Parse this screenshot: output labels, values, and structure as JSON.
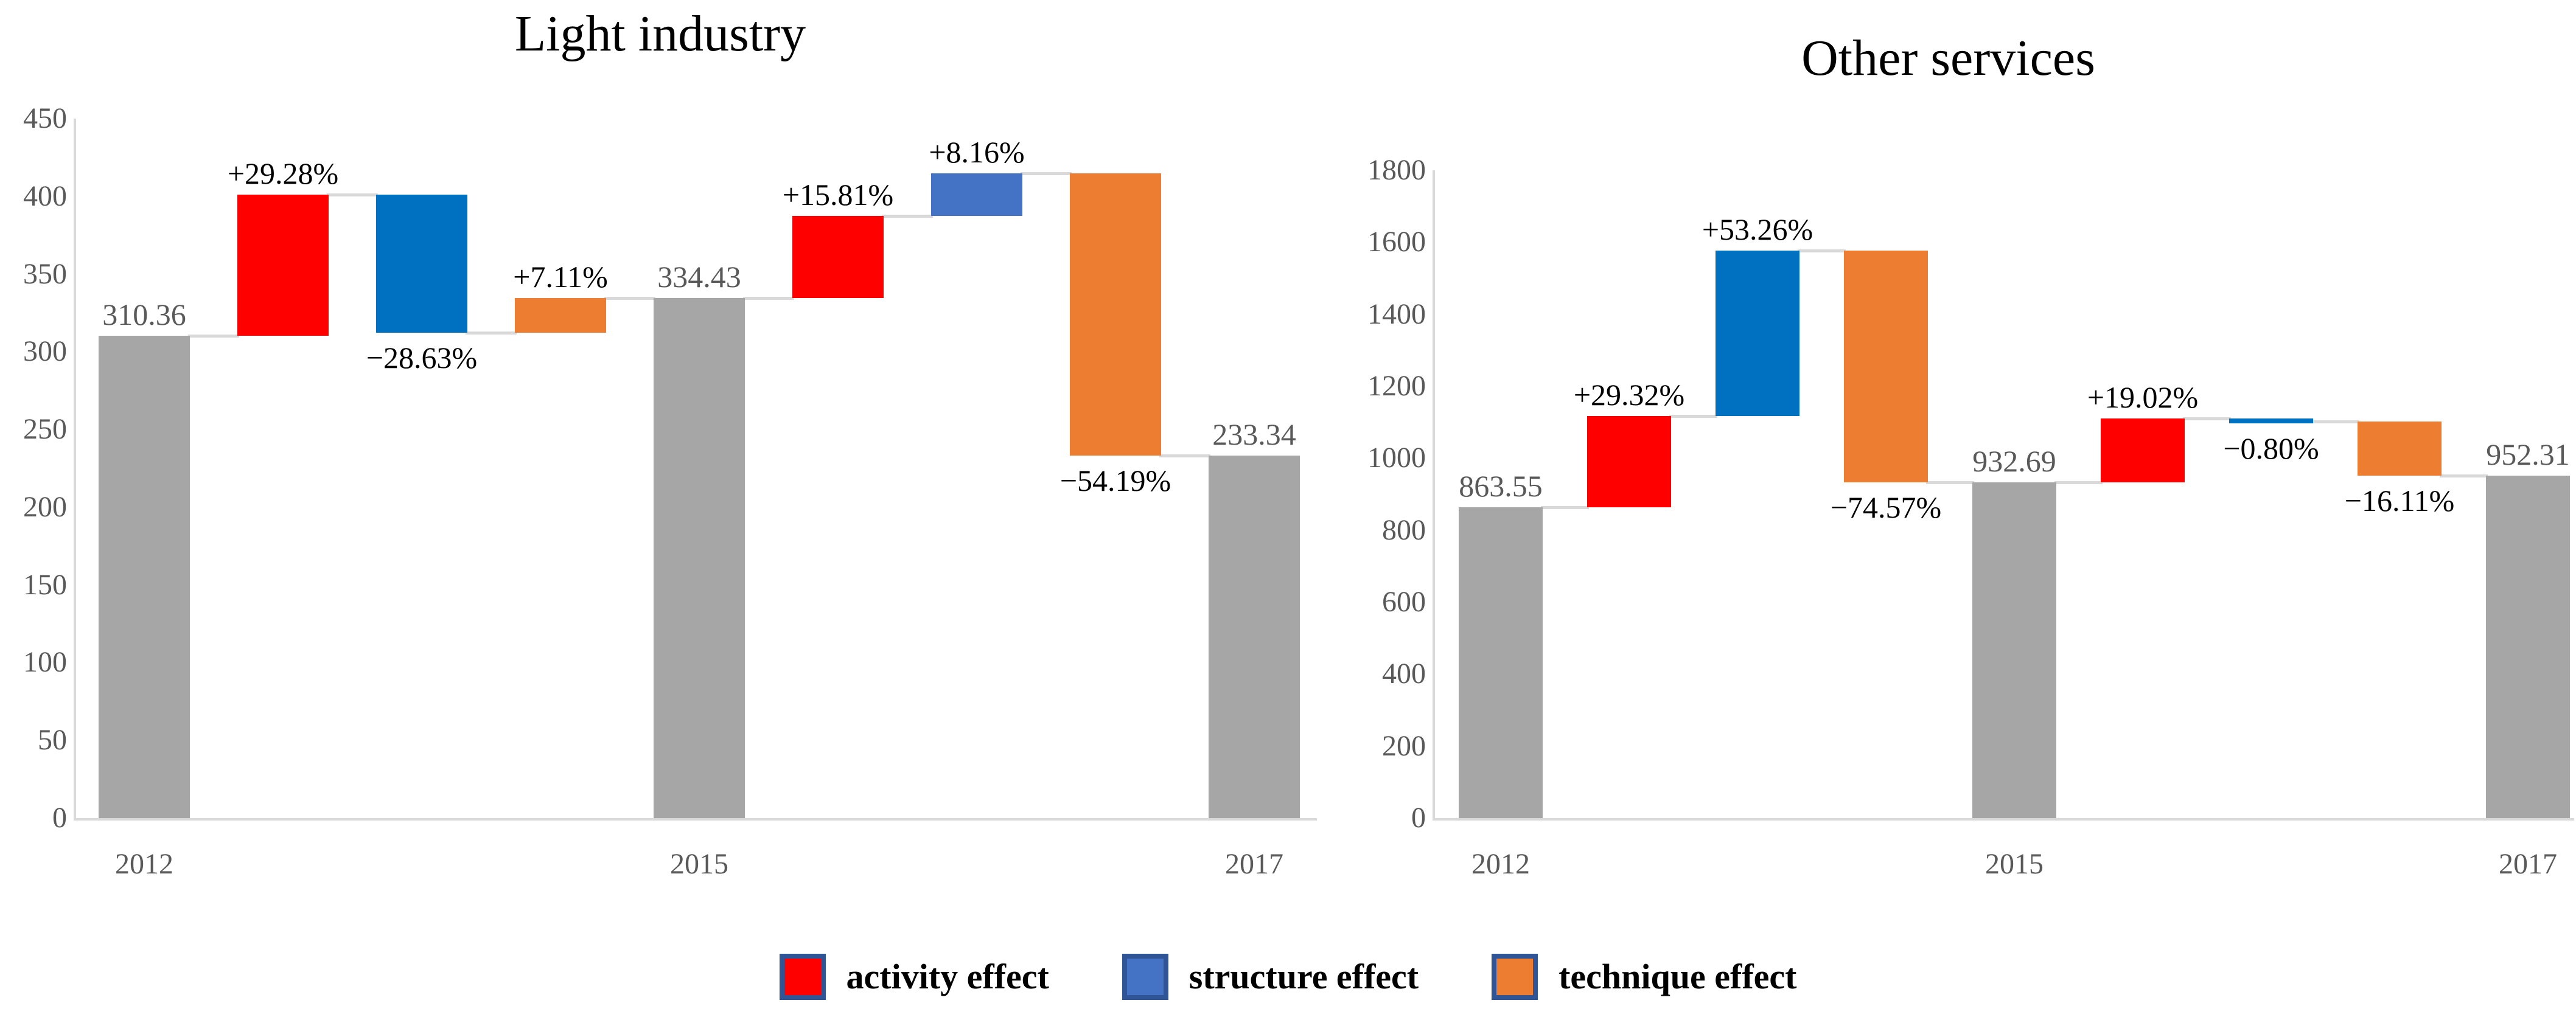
{
  "legend": {
    "swatch_border_color": "#2F5597",
    "items": [
      {
        "name": "activity-effect",
        "label": "activity effect",
        "color": "#FF0000"
      },
      {
        "name": "structure-effect",
        "label": "structure effect",
        "color": "#4472C4"
      },
      {
        "name": "technique-effect",
        "label": "technique effect",
        "color": "#ED7D31"
      }
    ]
  },
  "chart_data": [
    {
      "type": "bar",
      "subtype": "waterfall",
      "title": "Light industry",
      "xlabel": "",
      "ylabel": "",
      "ylim": [
        0,
        450
      ],
      "y_ticks": [
        450,
        400,
        350,
        300,
        250,
        200,
        150,
        100,
        50,
        0
      ],
      "x_tick_labels": [
        "2012",
        "2015",
        "2017"
      ],
      "grid": false,
      "legend_position": "bottom-shared",
      "axis_color": "#D9D9D9",
      "connector_color": "#D9D9D9",
      "tick_label_color": "#595959",
      "bars": [
        {
          "series": "year-total",
          "x_label": "2012",
          "from": 0,
          "to": 310.36,
          "color": "#A6A6A6",
          "label": "310.36",
          "label_pos": "above",
          "label_color": "#595959"
        },
        {
          "series": "activity-effect",
          "from": 310.36,
          "to": 401.23,
          "color": "#FF0000",
          "label": "+29.28%",
          "label_pos": "above",
          "label_color": "#000000"
        },
        {
          "series": "structure-effect",
          "from": 401.23,
          "to": 312.37,
          "color": "#0070C0",
          "label": "−28.63%",
          "label_pos": "below",
          "label_color": "#000000"
        },
        {
          "series": "technique-effect",
          "from": 312.37,
          "to": 334.43,
          "color": "#ED7D31",
          "label": "+7.11%",
          "label_pos": "above",
          "label_color": "#000000"
        },
        {
          "series": "year-total",
          "x_label": "2015",
          "from": 0,
          "to": 334.43,
          "color": "#A6A6A6",
          "label": "334.43",
          "label_pos": "above",
          "label_color": "#595959"
        },
        {
          "series": "activity-effect",
          "from": 334.43,
          "to": 387.3,
          "color": "#FF0000",
          "label": "+15.81%",
          "label_pos": "above",
          "label_color": "#000000"
        },
        {
          "series": "structure-effect",
          "from": 387.3,
          "to": 414.59,
          "color": "#4472C4",
          "label": "+8.16%",
          "label_pos": "above",
          "label_color": "#000000"
        },
        {
          "series": "technique-effect",
          "from": 414.59,
          "to": 233.34,
          "color": "#ED7D31",
          "label": "−54.19%",
          "label_pos": "below",
          "label_color": "#000000"
        },
        {
          "series": "year-total",
          "x_label": "2017",
          "from": 0,
          "to": 233.34,
          "color": "#A6A6A6",
          "label": "233.34",
          "label_pos": "above",
          "label_color": "#595959"
        }
      ]
    },
    {
      "type": "bar",
      "subtype": "waterfall",
      "title": "Other services",
      "xlabel": "",
      "ylabel": "",
      "ylim": [
        0,
        1800
      ],
      "y_ticks": [
        1800,
        1600,
        1400,
        1200,
        1000,
        800,
        600,
        400,
        200,
        0
      ],
      "x_tick_labels": [
        "2012",
        "2015",
        "2017"
      ],
      "grid": false,
      "legend_position": "bottom-shared",
      "axis_color": "#D9D9D9",
      "connector_color": "#D9D9D9",
      "tick_label_color": "#595959",
      "bars": [
        {
          "series": "year-total",
          "x_label": "2012",
          "from": 0,
          "to": 863.55,
          "color": "#A6A6A6",
          "label": "863.55",
          "label_pos": "above",
          "label_color": "#595959"
        },
        {
          "series": "activity-effect",
          "from": 863.55,
          "to": 1116.74,
          "color": "#FF0000",
          "label": "+29.32%",
          "label_pos": "above",
          "label_color": "#000000"
        },
        {
          "series": "structure-effect",
          "from": 1116.74,
          "to": 1576.67,
          "color": "#0070C0",
          "label": "+53.26%",
          "label_pos": "above",
          "label_color": "#000000"
        },
        {
          "series": "technique-effect",
          "from": 1576.67,
          "to": 932.69,
          "color": "#ED7D31",
          "label": "−74.57%",
          "label_pos": "below",
          "label_color": "#000000"
        },
        {
          "series": "year-total",
          "x_label": "2015",
          "from": 0,
          "to": 932.69,
          "color": "#A6A6A6",
          "label": "932.69",
          "label_pos": "above",
          "label_color": "#595959"
        },
        {
          "series": "activity-effect",
          "from": 932.69,
          "to": 1110.09,
          "color": "#FF0000",
          "label": "+19.02%",
          "label_pos": "above",
          "label_color": "#000000"
        },
        {
          "series": "structure-effect",
          "from": 1110.09,
          "to": 1102.63,
          "color": "#0070C0",
          "label": "−0.80%",
          "label_pos": "below",
          "label_color": "#000000"
        },
        {
          "series": "technique-effect",
          "from": 1102.63,
          "to": 952.31,
          "color": "#ED7D31",
          "label": "−16.11%",
          "label_pos": "below",
          "label_color": "#000000"
        },
        {
          "series": "year-total",
          "x_label": "2017",
          "from": 0,
          "to": 952.31,
          "color": "#A6A6A6",
          "label": "952.31",
          "label_pos": "above",
          "label_color": "#595959"
        }
      ]
    }
  ]
}
